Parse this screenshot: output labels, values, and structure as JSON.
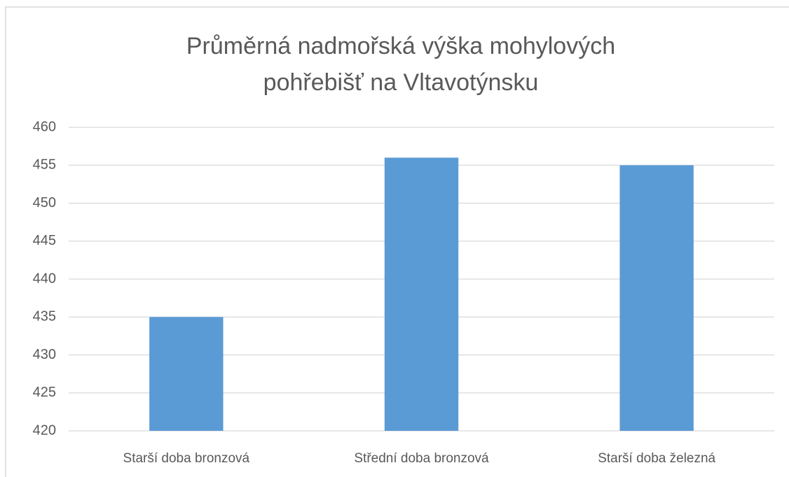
{
  "chart_data": {
    "type": "bar",
    "title": [
      "Průměrná nadmořská výška mohylových",
      "pohřebišť na Vltavotýnsku"
    ],
    "categories": [
      "Starší doba bronzová",
      "Střední doba bronzová",
      "Starší doba železná"
    ],
    "values": [
      435,
      456,
      455
    ],
    "color": "#5b9bd5",
    "ylim": [
      420,
      460
    ],
    "yticks": [
      420,
      425,
      430,
      435,
      440,
      445,
      450,
      455,
      460
    ],
    "grid": true
  }
}
